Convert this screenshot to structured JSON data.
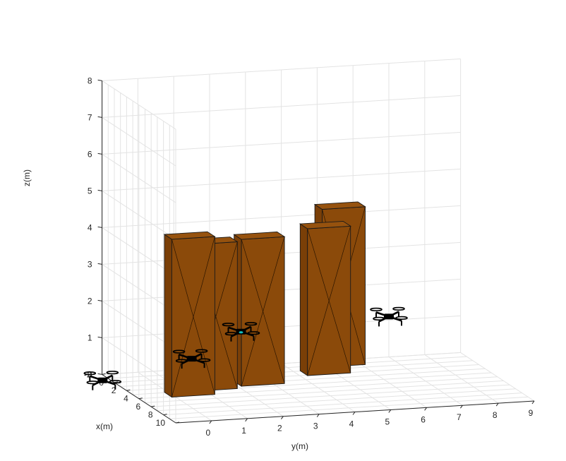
{
  "chart_data": {
    "type": "scatter",
    "title": "",
    "xlabel": "x(m)",
    "ylabel": "y(m)",
    "zlabel": "z(m)",
    "xlim": [
      -2,
      10
    ],
    "ylim": [
      -1,
      9
    ],
    "zlim": [
      0,
      8
    ],
    "x_ticks": [
      "-2",
      "0",
      "2",
      "4",
      "6",
      "8",
      "10"
    ],
    "y_ticks": [
      "0",
      "1",
      "2",
      "3",
      "4",
      "5",
      "6",
      "7",
      "8",
      "9"
    ],
    "z_ticks": [
      "0",
      "1",
      "2",
      "3",
      "4",
      "5",
      "6",
      "7",
      "8"
    ],
    "grid": true,
    "obstacle_color": "#8b4a0a",
    "drone_color": "#000000",
    "drone_accent_color": "#12c0c0",
    "obstacles": [
      {
        "x": 3.5,
        "y": 0.5,
        "height": 4.3
      },
      {
        "x": 2.5,
        "y": 1.3,
        "height": 4.0
      },
      {
        "x": 2.0,
        "y": 2.7,
        "height": 4.0
      },
      {
        "x": 0.5,
        "y": 4.8,
        "height": 4.0
      },
      {
        "x": -1.2,
        "y": 5.5,
        "height": 4.3
      }
    ],
    "drones": [
      {
        "x": 1.0,
        "y": -1.5,
        "z": 0.2
      },
      {
        "x": 1.5,
        "y": 0.9,
        "z": 0.7
      },
      {
        "x": 0.2,
        "y": 2.5,
        "z": 1.2
      },
      {
        "x": -2.0,
        "y": 7.0,
        "z": 1.1
      }
    ]
  }
}
